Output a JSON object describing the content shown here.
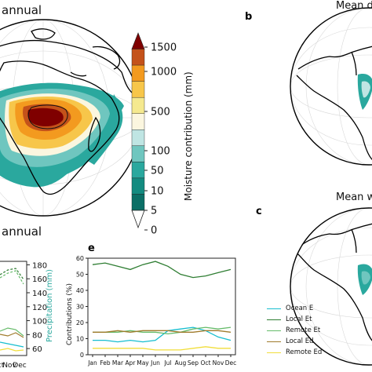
{
  "panels": {
    "a_title": "annual",
    "b_letter": "b",
    "b_title": "Mean d",
    "c_letter": "c",
    "c_title": "Mean w",
    "e_letter": "e"
  },
  "colorbar": {
    "label": "Moisture contribution (mm)",
    "ticks": [
      "1500",
      "1000",
      "500",
      "100",
      "50",
      "10",
      "5",
      "0"
    ],
    "colors": [
      "#7f0000",
      "#c4521a",
      "#f39a1f",
      "#f7c64a",
      "#f5e98f",
      "#fbf6df",
      "#bfe5e3",
      "#6fc6bf",
      "#2aa89e",
      "#138b80",
      "#0b6f66"
    ]
  },
  "left_partial": {
    "y_ticks_right": [
      "180",
      "160",
      "140",
      "120",
      "100",
      "80",
      "60"
    ],
    "y_label": "Precipitation (mm)",
    "x_ticks": [
      "ct",
      "Nov",
      "Dec"
    ]
  },
  "chart_data": {
    "type": "line",
    "title": "",
    "xlabel": "",
    "ylabel": "Contributions (%)",
    "ylim": [
      0,
      60
    ],
    "yticks": [
      0,
      10,
      20,
      30,
      40,
      50,
      60
    ],
    "categories": [
      "Jan",
      "Feb",
      "Mar",
      "Apr",
      "May",
      "Jun",
      "Jul",
      "Aug",
      "Sep",
      "Oct",
      "Nov",
      "Dec"
    ],
    "legend_position": "right",
    "series": [
      {
        "name": "Ocean E",
        "color": "#17becf",
        "values": [
          9,
          9,
          8,
          9,
          8,
          9,
          15,
          16,
          17,
          15,
          11,
          9
        ]
      },
      {
        "name": "Local Et",
        "color": "#2e7d32",
        "values": [
          56,
          57,
          55,
          53,
          56,
          58,
          55,
          50,
          48,
          49,
          51,
          53
        ]
      },
      {
        "name": "Remote Et",
        "color": "#66bb6a",
        "values": [
          14,
          14,
          14,
          15,
          14,
          14,
          13,
          14,
          16,
          17,
          16,
          17
        ]
      },
      {
        "name": "Local Ed",
        "color": "#a07b2c",
        "values": [
          14,
          14,
          15,
          14,
          15,
          15,
          15,
          14,
          14,
          15,
          15,
          14
        ]
      },
      {
        "name": "Remote Ed",
        "color": "#f1de3b",
        "values": [
          4,
          4,
          4,
          4,
          4,
          3,
          3,
          3,
          4,
          5,
          4,
          4
        ]
      }
    ]
  }
}
